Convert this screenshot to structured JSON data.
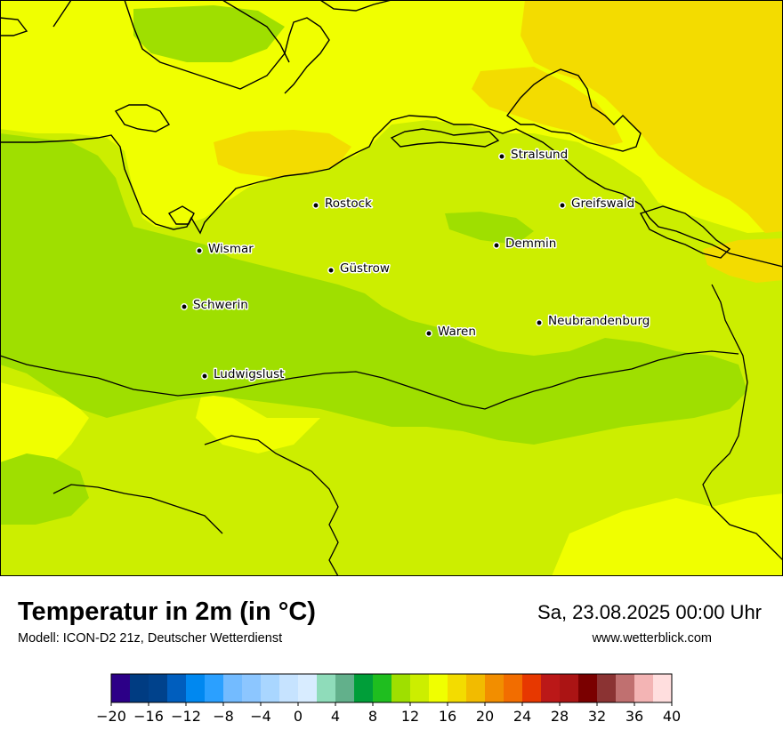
{
  "title": "Temperatur in 2m (in °C)",
  "subtitle": "Modell: ICON-D2 21z, Deutscher Wetterdienst",
  "datetime": "Sa, 23.08.2025 00:00 Uhr",
  "website": "www.wetterblick.com",
  "colors": {
    "temp_10_12": "#9fdf00",
    "temp_12_14": "#ccee00",
    "temp_14_16": "#f0ff00",
    "temp_16_18": "#f3dc00",
    "coastline": "#000000"
  },
  "cities": [
    {
      "name": "Stralsund",
      "id": "stralsund"
    },
    {
      "name": "Rostock",
      "id": "rostock"
    },
    {
      "name": "Greifswald",
      "id": "greifswald"
    },
    {
      "name": "Wismar",
      "id": "wismar"
    },
    {
      "name": "Demmin",
      "id": "demmin"
    },
    {
      "name": "Güstrow",
      "id": "guestrow"
    },
    {
      "name": "Schwerin",
      "id": "schwerin"
    },
    {
      "name": "Neubrandenburg",
      "id": "neubrandenburg"
    },
    {
      "name": "Waren",
      "id": "waren"
    },
    {
      "name": "Ludwigslust",
      "id": "ludwigslust"
    }
  ],
  "legend": {
    "min": -20,
    "max": 40,
    "step": 2,
    "colors": [
      "#2c0087",
      "#003c82",
      "#00428c",
      "#005ebe",
      "#0088f0",
      "#2ba0ff",
      "#73bbff",
      "#8cc6ff",
      "#a9d6ff",
      "#c6e3ff",
      "#d8ecff",
      "#8fdcba",
      "#62b08b",
      "#009e39",
      "#1fbe1f",
      "#9fdf00",
      "#ccee00",
      "#f0ff00",
      "#f3dc00",
      "#f2bb00",
      "#f28e00",
      "#f26d00",
      "#e73800",
      "#bb1818",
      "#ab1414",
      "#7a0000",
      "#8b3333",
      "#c07070",
      "#f3b4b4",
      "#ffdede"
    ],
    "tick_labels": [
      "−20",
      "−16",
      "−12",
      "−8",
      "−4",
      "0",
      "4",
      "8",
      "12",
      "16",
      "20",
      "24",
      "28",
      "32",
      "36",
      "40"
    ]
  }
}
